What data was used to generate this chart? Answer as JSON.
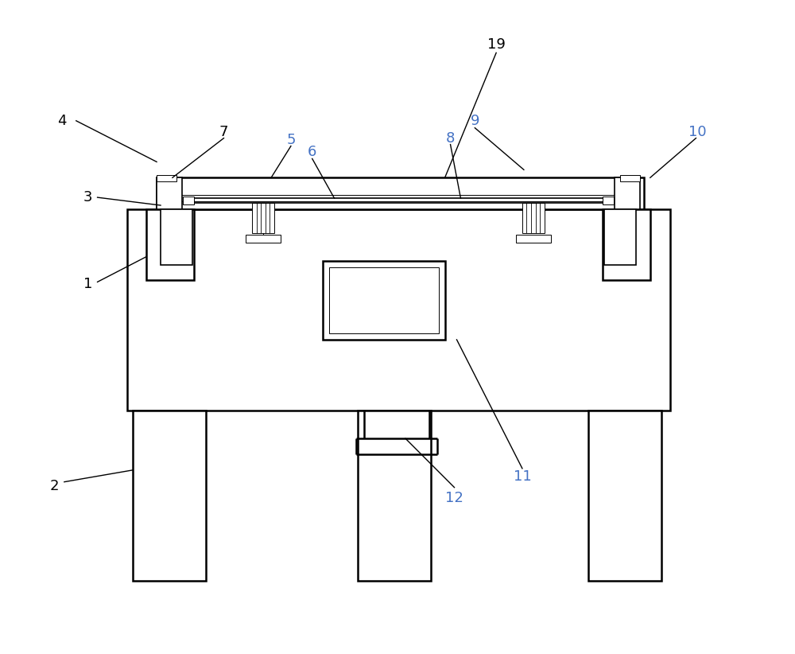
{
  "fig_width": 10.0,
  "fig_height": 8.22,
  "dpi": 100,
  "bg_color": "#ffffff",
  "lc": "#000000",
  "blue": "#4472c4",
  "lw_main": 1.8,
  "lw_med": 1.2,
  "lw_thin": 0.7,
  "label_fs": 13
}
